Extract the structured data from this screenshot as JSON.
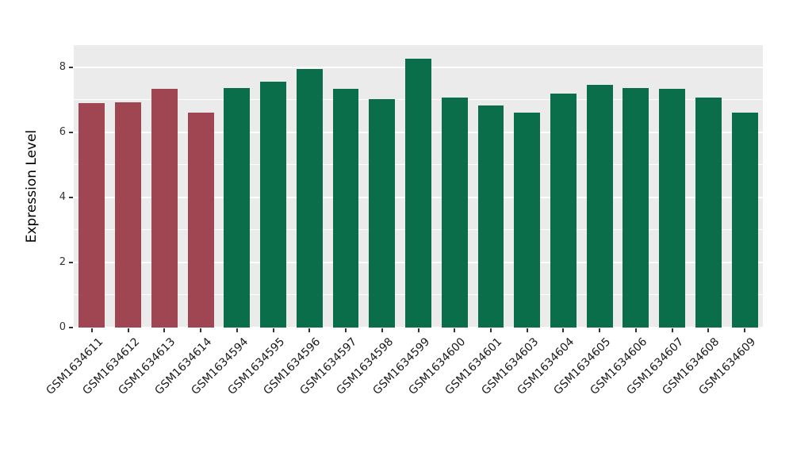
{
  "figure": {
    "background": "#FFFFFF",
    "panel_background": "#EBEBEB",
    "gridline_color": "#FFFFFF",
    "axis_text_color": "#333333"
  },
  "chart_data": {
    "type": "bar",
    "title": "",
    "xlabel": "",
    "ylabel": "Expression Level",
    "ylim": [
      0,
      8.68
    ],
    "yticks": [
      0,
      2,
      4,
      6,
      8
    ],
    "minor_ticks": [
      1,
      3,
      5,
      7
    ],
    "grid": "on",
    "legend": "none",
    "categories": [
      "GSM1634611",
      "GSM1634612",
      "GSM1634613",
      "GSM1634614",
      "GSM1634594",
      "GSM1634595",
      "GSM1634596",
      "GSM1634597",
      "GSM1634598",
      "GSM1634599",
      "GSM1634600",
      "GSM1634601",
      "GSM1634603",
      "GSM1634604",
      "GSM1634605",
      "GSM1634606",
      "GSM1634607",
      "GSM1634608",
      "GSM1634609"
    ],
    "values": [
      6.9,
      6.92,
      7.33,
      6.6,
      7.37,
      7.55,
      7.95,
      7.33,
      7.02,
      8.27,
      7.07,
      6.83,
      6.6,
      7.2,
      7.47,
      7.37,
      7.35,
      7.07,
      6.62
    ],
    "groups": [
      "red",
      "red",
      "red",
      "red",
      "green",
      "green",
      "green",
      "green",
      "green",
      "green",
      "green",
      "green",
      "green",
      "green",
      "green",
      "green",
      "green",
      "green",
      "green"
    ],
    "palette": {
      "red": "#A04552",
      "green": "#0B6E4B"
    }
  }
}
